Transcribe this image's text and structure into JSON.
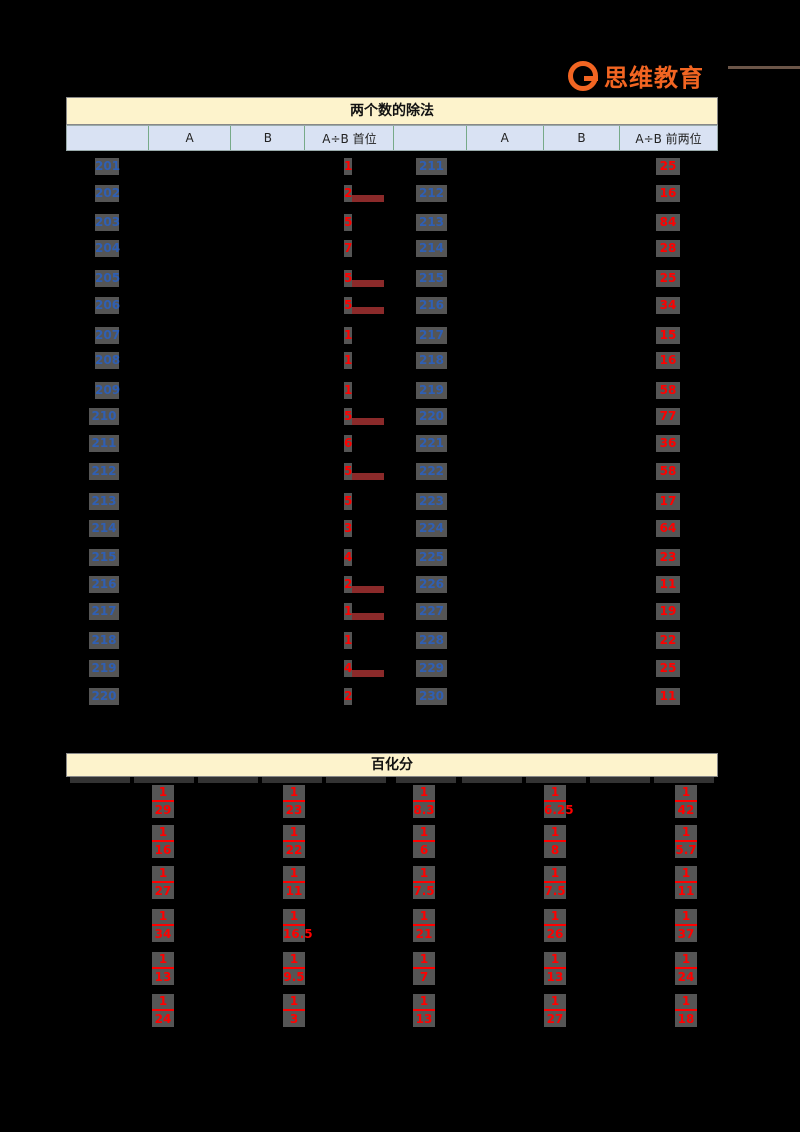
{
  "logo": {
    "text": "思维教育",
    "accent": "#f26522"
  },
  "division": {
    "title": "两个数的除法",
    "headers": [
      "",
      "A",
      "B",
      "A÷B 首位",
      "",
      "A",
      "B",
      "A÷B 前两位"
    ],
    "left_labels": [
      "201",
      "202",
      "203",
      "204",
      "205",
      "206",
      "207",
      "208",
      "209",
      "210",
      "211",
      "212",
      "213",
      "214",
      "215",
      "216",
      "217",
      "218",
      "219",
      "220"
    ],
    "left_answers": [
      "1",
      "2",
      "5",
      "7",
      "5",
      "5",
      "1",
      "1",
      "1",
      "5",
      "6",
      "5",
      "5",
      "3",
      "4",
      "2",
      "1",
      "1",
      "4",
      "2"
    ],
    "right_labels": [
      "211",
      "212",
      "213",
      "214",
      "215",
      "216",
      "217",
      "218",
      "219",
      "220",
      "221",
      "222",
      "223",
      "224",
      "225",
      "226",
      "227",
      "228",
      "229",
      "230"
    ],
    "right_answers": [
      "25",
      "16",
      "84",
      "28",
      "25",
      "34",
      "15",
      "16",
      "58",
      "77",
      "36",
      "58",
      "17",
      "64",
      "23",
      "11",
      "19",
      "22",
      "25",
      "11"
    ]
  },
  "percent": {
    "title": "百化分",
    "columns": [
      [
        "1/29",
        "1/16",
        "1/27",
        "1/34",
        "1/13",
        "1/24"
      ],
      [
        "1/23",
        "1/22",
        "1/11",
        "1/16.5",
        "1/9.5",
        "1/3"
      ],
      [
        "1/8.3",
        "1/6",
        "1/7.5",
        "1/21",
        "1/7",
        "1/13"
      ],
      [
        "1/6.25",
        "1/8",
        "1/7.5",
        "1/26",
        "1/13",
        "1/27"
      ],
      [
        "1/42",
        "1/5.7",
        "1/11",
        "1/37",
        "1/24",
        "1/18"
      ]
    ]
  }
}
